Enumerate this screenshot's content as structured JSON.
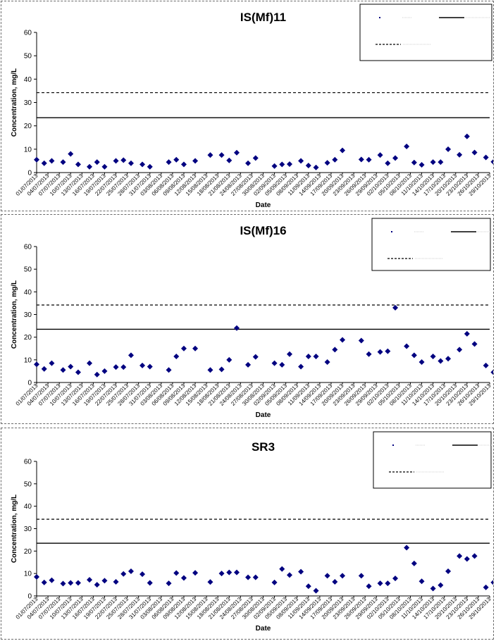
{
  "chart_data": [
    {
      "type": "scatter",
      "title": "IS(Mf)11",
      "xlabel": "Date",
      "ylabel": "Concentration, mg/L",
      "ylim": [
        0,
        60
      ],
      "yticks": [
        0,
        10,
        20,
        30,
        40,
        50,
        60
      ],
      "xlim": [
        "2013-07-01",
        "2013-10-29"
      ],
      "x_tick_labels": [
        "01/07/2013",
        "04/07/2013",
        "07/07/2013",
        "10/07/2013",
        "13/07/2013",
        "16/07/2013",
        "19/07/2013",
        "22/07/2013",
        "25/07/2013",
        "28/07/2013",
        "31/07/2013",
        "03/08/2013",
        "06/08/2013",
        "09/08/2013",
        "12/08/2013",
        "15/08/2013",
        "18/08/2013",
        "21/08/2013",
        "24/08/2013",
        "27/08/2013",
        "30/08/2013",
        "02/09/2013",
        "05/09/2013",
        "08/09/2013",
        "11/09/2013",
        "14/09/2013",
        "17/09/2013",
        "20/09/2013",
        "23/09/2013",
        "26/09/2013",
        "29/09/2013",
        "02/10/2013",
        "05/10/2013",
        "08/10/2013",
        "11/10/2013",
        "14/10/2013",
        "17/10/2013",
        "20/10/2013",
        "23/10/2013",
        "26/10/2013",
        "29/10/2013"
      ],
      "series": [
        {
          "name": "",
          "style": "marker",
          "color": "#000080",
          "x": [
            "2013-07-01",
            "2013-07-03",
            "2013-07-05",
            "2013-07-08",
            "2013-07-10",
            "2013-07-12",
            "2013-07-15",
            "2013-07-17",
            "2013-07-19",
            "2013-07-22",
            "2013-07-24",
            "2013-07-26",
            "2013-07-29",
            "2013-07-31",
            "2013-08-05",
            "2013-08-07",
            "2013-08-09",
            "2013-08-12",
            "2013-08-16",
            "2013-08-19",
            "2013-08-21",
            "2013-08-23",
            "2013-08-26",
            "2013-08-28",
            "2013-09-02",
            "2013-09-04",
            "2013-09-06",
            "2013-09-09",
            "2013-09-11",
            "2013-09-13",
            "2013-09-16",
            "2013-09-18",
            "2013-09-20",
            "2013-09-25",
            "2013-09-27",
            "2013-09-30",
            "2013-10-02",
            "2013-10-04",
            "2013-10-07",
            "2013-10-09",
            "2013-10-11",
            "2013-10-14",
            "2013-10-16",
            "2013-10-18",
            "2013-10-21",
            "2013-10-23",
            "2013-10-25",
            "2013-10-28",
            "2013-10-30"
          ],
          "y": [
            5.5,
            4,
            5,
            4.5,
            8,
            3.5,
            2.5,
            4.5,
            2.5,
            5,
            5.3,
            4,
            3.5,
            2.5,
            4.5,
            5.5,
            3.5,
            5,
            7.5,
            7.5,
            5.2,
            8.5,
            4,
            6.2,
            2.8,
            3.5,
            3.6,
            5,
            3,
            2.2,
            4.2,
            5.5,
            9.5,
            5.6,
            5.5,
            7.5,
            4,
            6.2,
            11.2,
            4.3,
            3.3,
            4.5,
            4.5,
            10,
            7.6,
            15.5,
            8.6,
            6.5,
            4.6
          ]
        },
        {
          "name": "",
          "style": "solid",
          "y": 23.5
        },
        {
          "name": "",
          "style": "dashed",
          "y": 34.2
        }
      ],
      "legend": "top-right"
    },
    {
      "type": "scatter",
      "title": "IS(Mf)16",
      "xlabel": "Date",
      "ylabel": "Concentration, mg/L",
      "ylim": [
        0,
        60
      ],
      "yticks": [
        0,
        10,
        20,
        30,
        40,
        50,
        60
      ],
      "xlim": [
        "2013-07-01",
        "2013-10-29"
      ],
      "x_tick_labels": [
        "01/07/2013",
        "04/07/2013",
        "07/07/2013",
        "10/07/2013",
        "13/07/2013",
        "16/07/2013",
        "19/07/2013",
        "22/07/2013",
        "25/07/2013",
        "28/07/2013",
        "31/07/2013",
        "03/08/2013",
        "06/08/2013",
        "09/08/2013",
        "12/08/2013",
        "15/08/2013",
        "18/08/2013",
        "21/08/2013",
        "24/08/2013",
        "27/08/2013",
        "30/08/2013",
        "02/09/2013",
        "05/09/2013",
        "08/09/2013",
        "11/09/2013",
        "14/09/2013",
        "17/09/2013",
        "20/09/2013",
        "23/09/2013",
        "26/09/2013",
        "29/09/2013",
        "02/10/2013",
        "05/10/2013",
        "08/10/2013",
        "11/10/2013",
        "14/10/2013",
        "17/10/2013",
        "20/10/2013",
        "23/10/2013",
        "26/10/2013",
        "29/10/2013"
      ],
      "series": [
        {
          "name": "",
          "style": "marker",
          "color": "#000080",
          "x": [
            "2013-07-01",
            "2013-07-03",
            "2013-07-05",
            "2013-07-08",
            "2013-07-10",
            "2013-07-12",
            "2013-07-15",
            "2013-07-17",
            "2013-07-19",
            "2013-07-22",
            "2013-07-24",
            "2013-07-26",
            "2013-07-29",
            "2013-07-31",
            "2013-08-05",
            "2013-08-07",
            "2013-08-09",
            "2013-08-12",
            "2013-08-16",
            "2013-08-19",
            "2013-08-21",
            "2013-08-23",
            "2013-08-26",
            "2013-08-28",
            "2013-09-02",
            "2013-09-04",
            "2013-09-06",
            "2013-09-09",
            "2013-09-11",
            "2013-09-13",
            "2013-09-16",
            "2013-09-18",
            "2013-09-20",
            "2013-09-25",
            "2013-09-27",
            "2013-09-30",
            "2013-10-02",
            "2013-10-04",
            "2013-10-07",
            "2013-10-09",
            "2013-10-11",
            "2013-10-14",
            "2013-10-16",
            "2013-10-18",
            "2013-10-21",
            "2013-10-23",
            "2013-10-25",
            "2013-10-28",
            "2013-10-30"
          ],
          "y": [
            8,
            6,
            8.5,
            5.5,
            7,
            4.5,
            8.5,
            3.5,
            5,
            6.8,
            6.8,
            12,
            7.5,
            7,
            5.5,
            11.5,
            15,
            15,
            5.5,
            5.8,
            10,
            24,
            7.8,
            11.3,
            8.5,
            7.8,
            12.5,
            7,
            11.5,
            11.5,
            9,
            14.5,
            18.8,
            18.5,
            12.5,
            13.5,
            13.8,
            33,
            16,
            12,
            9,
            11.5,
            9.5,
            10.5,
            14.5,
            21.5,
            17,
            7.5,
            4.5
          ]
        },
        {
          "name": "",
          "style": "solid",
          "y": 23.5
        },
        {
          "name": "",
          "style": "dashed",
          "y": 34.2
        }
      ],
      "legend": "top-right"
    },
    {
      "type": "scatter",
      "title": "SR3",
      "xlabel": "Date",
      "ylabel": "Concentration, mg/L",
      "ylim": [
        0,
        60
      ],
      "yticks": [
        0,
        10,
        20,
        30,
        40,
        50,
        60
      ],
      "xlim": [
        "2013-07-01",
        "2013-10-29"
      ],
      "x_tick_labels": [
        "01/07/2013",
        "04/07/2013",
        "07/07/2013",
        "10/07/2013",
        "13/07/2013",
        "16/07/2013",
        "19/07/2013",
        "22/07/2013",
        "25/07/2013",
        "28/07/2013",
        "31/07/2013",
        "03/08/2013",
        "06/08/2013",
        "09/08/2013",
        "12/08/2013",
        "15/08/2013",
        "18/08/2013",
        "21/08/2013",
        "24/08/2013",
        "27/08/2013",
        "30/08/2013",
        "02/09/2013",
        "05/09/2013",
        "08/09/2013",
        "11/09/2013",
        "14/09/2013",
        "17/09/2013",
        "20/09/2013",
        "23/09/2013",
        "26/09/2013",
        "29/09/2013",
        "02/10/2013",
        "05/10/2013",
        "08/10/2013",
        "11/10/2013",
        "14/10/2013",
        "17/10/2013",
        "20/10/2013",
        "23/10/2013",
        "26/10/2013",
        "29/10/2013"
      ],
      "series": [
        {
          "name": "",
          "style": "marker",
          "color": "#000080",
          "x": [
            "2013-07-01",
            "2013-07-03",
            "2013-07-05",
            "2013-07-08",
            "2013-07-10",
            "2013-07-12",
            "2013-07-15",
            "2013-07-17",
            "2013-07-19",
            "2013-07-22",
            "2013-07-24",
            "2013-07-26",
            "2013-07-29",
            "2013-07-31",
            "2013-08-05",
            "2013-08-07",
            "2013-08-09",
            "2013-08-12",
            "2013-08-16",
            "2013-08-19",
            "2013-08-21",
            "2013-08-23",
            "2013-08-26",
            "2013-08-28",
            "2013-09-02",
            "2013-09-04",
            "2013-09-06",
            "2013-09-09",
            "2013-09-11",
            "2013-09-13",
            "2013-09-16",
            "2013-09-18",
            "2013-09-20",
            "2013-09-25",
            "2013-09-27",
            "2013-09-30",
            "2013-10-02",
            "2013-10-04",
            "2013-10-07",
            "2013-10-09",
            "2013-10-11",
            "2013-10-14",
            "2013-10-16",
            "2013-10-18",
            "2013-10-21",
            "2013-10-23",
            "2013-10-25",
            "2013-10-28",
            "2013-10-30"
          ],
          "y": [
            8.5,
            6,
            7,
            5.5,
            5.8,
            5.8,
            7.2,
            5,
            6.8,
            6.3,
            9.8,
            11,
            9.7,
            5.8,
            5.6,
            10.2,
            8,
            10.3,
            6.2,
            10,
            10.5,
            10.5,
            8.3,
            8.3,
            6,
            12,
            9.3,
            10.8,
            4.3,
            2.3,
            9,
            6.3,
            9,
            9,
            4.3,
            5.6,
            5.6,
            7.8,
            21.5,
            14.5,
            6.5,
            3.3,
            4.8,
            11,
            17.8,
            16.5,
            17.8,
            3.8,
            6
          ]
        },
        {
          "name": "",
          "style": "solid",
          "y": 23.5
        },
        {
          "name": "",
          "style": "dashed",
          "y": 34.2
        }
      ],
      "legend": "top-right"
    }
  ]
}
